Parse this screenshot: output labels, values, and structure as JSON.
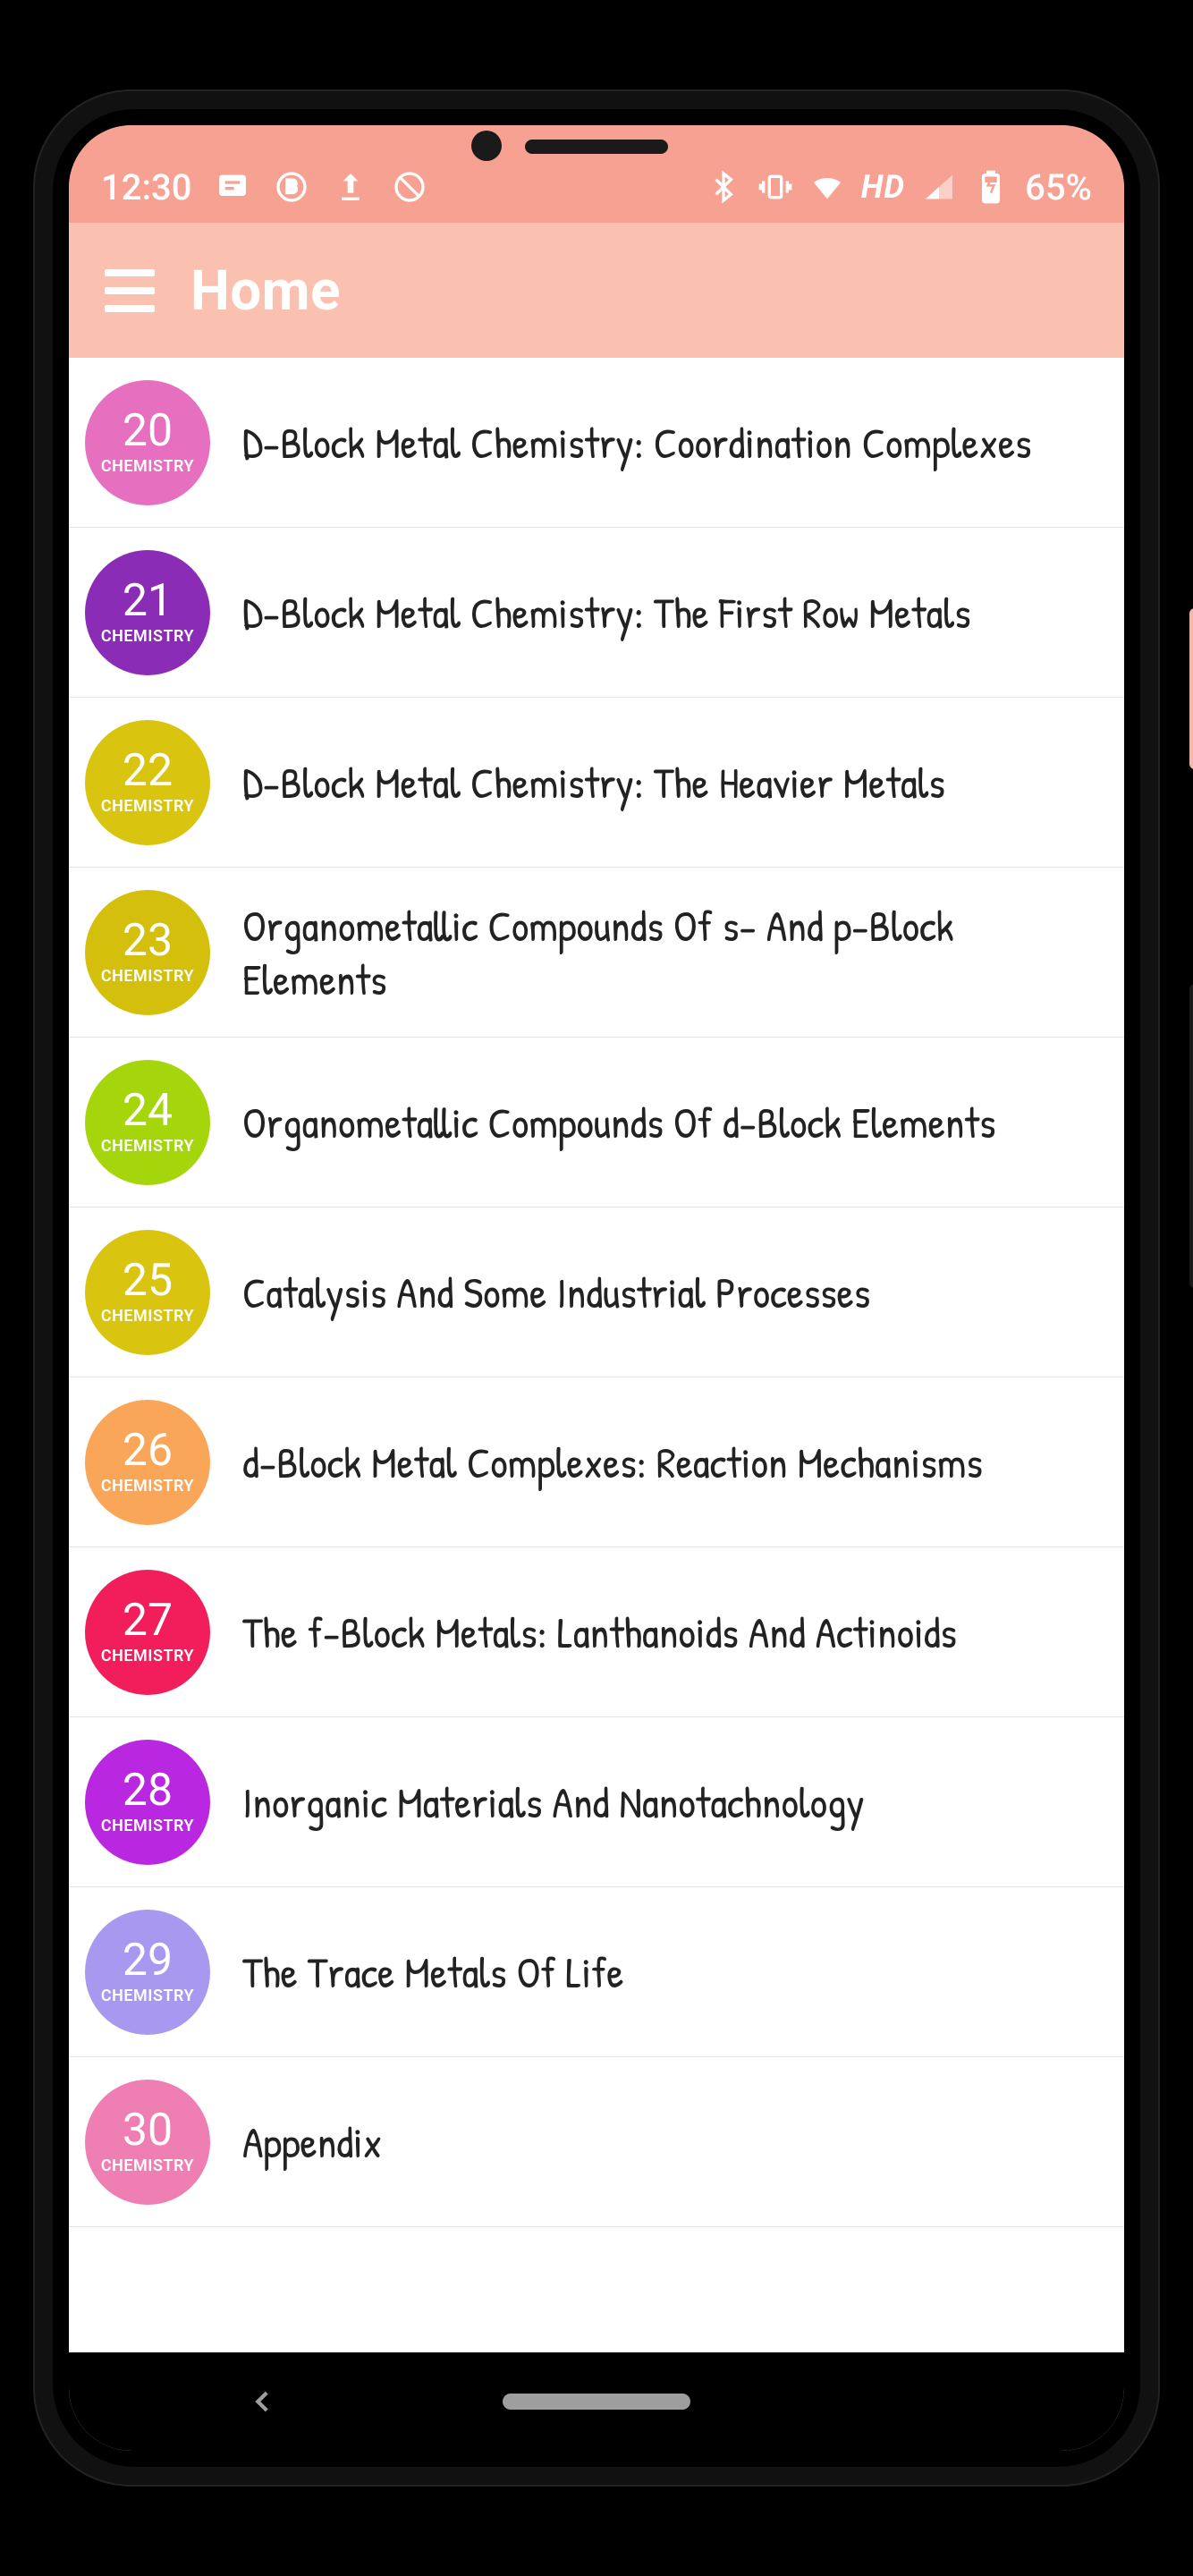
{
  "colors": {
    "header_top": "#f7a192",
    "header_bottom": "#fbc1b0",
    "text": "#222222",
    "divider": "#e4e4e4",
    "screen_bg": "#ffffff",
    "nav_pill": "#9e9e9e"
  },
  "statusbar": {
    "time": "12:30",
    "hd_label": "HD",
    "battery": "65%"
  },
  "appbar": {
    "title": "Home"
  },
  "list": {
    "badge_sub": "CHEMISTRY",
    "items": [
      {
        "num": "20",
        "color": "#e66fc0",
        "title": "D-Block Metal Chemistry: Coordination Complexes"
      },
      {
        "num": "21",
        "color": "#8a2cb5",
        "title": "D-Block Metal Chemistry: The First Row Metals"
      },
      {
        "num": "22",
        "color": "#d9c50f",
        "title": "D-Block Metal Chemistry: The Heavier Metals"
      },
      {
        "num": "23",
        "color": "#d4bf0c",
        "title": "Organometallic Compounds Of s- And p-Block Elements"
      },
      {
        "num": "24",
        "color": "#a4d60b",
        "title": "Organometallic Compounds Of d-Block Elements"
      },
      {
        "num": "25",
        "color": "#d9c50f",
        "title": "Catalysis And Some Industrial Processes"
      },
      {
        "num": "26",
        "color": "#f9a658",
        "title": "d-Block Metal Complexes: Reaction Mechanisms"
      },
      {
        "num": "27",
        "color": "#f21d5b",
        "title": "The f-Block Metals: Lanthanoids And Actinoids"
      },
      {
        "num": "28",
        "color": "#b927e0",
        "title": "Inorganic Materials And Nanotachnology"
      },
      {
        "num": "29",
        "color": "#a998ef",
        "title": "The Trace Metals Of Life"
      },
      {
        "num": "30",
        "color": "#ef7fb2",
        "title": "Appendix"
      }
    ]
  }
}
